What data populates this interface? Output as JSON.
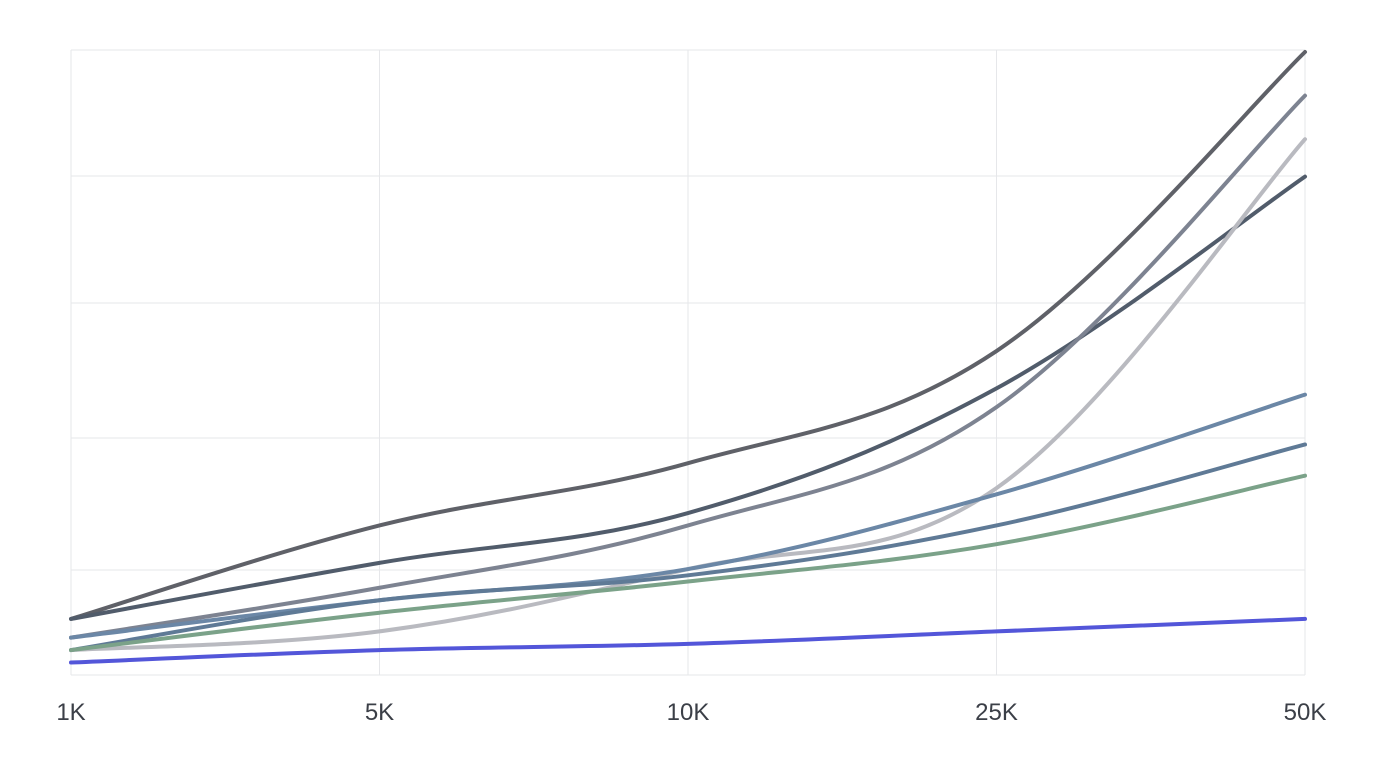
{
  "chart_data": {
    "type": "line",
    "title": "",
    "xlabel": "",
    "ylabel": "",
    "x_scale": "categorical",
    "categories": [
      "1K",
      "5K",
      "10K",
      "25K",
      "50K"
    ],
    "ylim": [
      0,
      100
    ],
    "grid": {
      "vertical": true,
      "horizontal": true
    },
    "legend": "none",
    "series": [
      {
        "color": "#5f6168",
        "values": [
          9,
          24,
          34,
          52,
          100
        ]
      },
      {
        "color": "#515c6b",
        "values": [
          9,
          18,
          26,
          46,
          80
        ]
      },
      {
        "color": "#7d8391",
        "values": [
          6,
          14,
          24,
          43,
          93
        ]
      },
      {
        "color": "#b9bac0",
        "values": [
          4,
          7,
          17,
          30,
          86
        ]
      },
      {
        "color": "#6b87a6",
        "values": [
          6,
          12,
          17,
          29,
          45
        ]
      },
      {
        "color": "#5f7a96",
        "values": [
          4,
          12,
          16,
          24,
          37
        ]
      },
      {
        "color": "#7ba289",
        "values": [
          4,
          10,
          15,
          21,
          32
        ]
      },
      {
        "color": "#5356d9",
        "values": [
          2,
          4,
          5,
          7,
          9
        ]
      }
    ]
  }
}
